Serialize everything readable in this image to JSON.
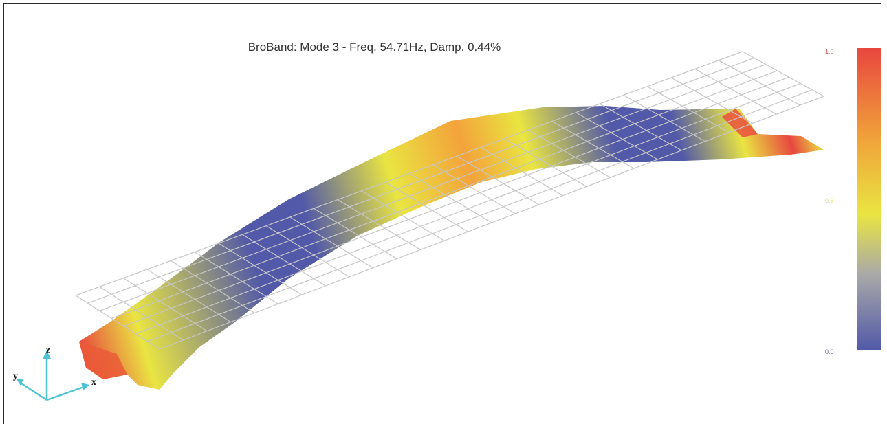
{
  "title": "BroBand: Mode 3 - Freq. 54.71Hz, Damp. 0.44%",
  "colorbar": {
    "max_label": "1.0",
    "mid_label": "0.5",
    "min_label": "0.0",
    "colors": [
      "#e8473f",
      "#f0a23a",
      "#e9e542",
      "#a9a9a8",
      "#5259a8"
    ],
    "max_color": "#d9534f",
    "mid_color": "#e3d96a",
    "min_color": "#5a62a8"
  },
  "axes": {
    "z": "z",
    "y": "y",
    "x": "x",
    "arrow_color": "#4ec3d6"
  },
  "mesh_color": "#c6c6c6",
  "mode_shape_colors": {
    "peak": "#e8473f",
    "high": "#f3a33b",
    "mid": "#e9e542",
    "node": "#5259a8"
  }
}
